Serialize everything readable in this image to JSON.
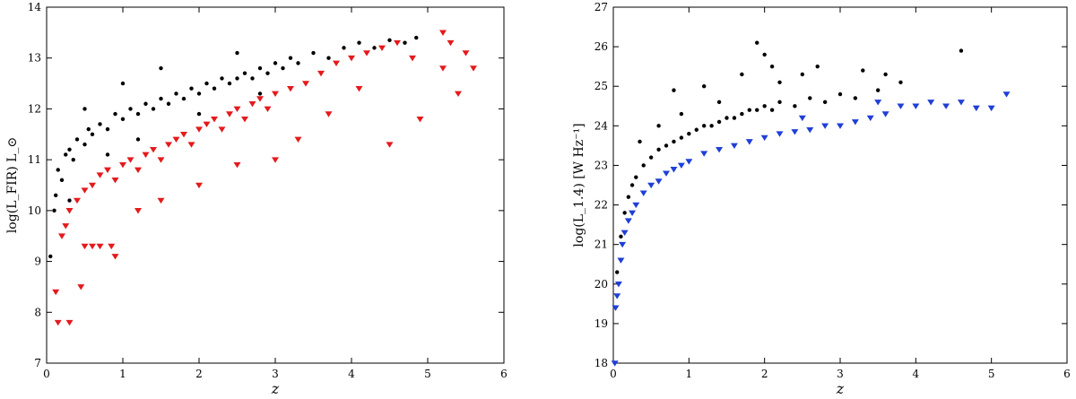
{
  "chart_data": [
    {
      "type": "scatter",
      "xlabel": "z",
      "ylabel": "log(L_FIR) L_⊙",
      "xlim": [
        0,
        6
      ],
      "ylim": [
        7,
        14
      ],
      "xticks": [
        "0",
        "1",
        "2",
        "3",
        "4",
        "5",
        "6"
      ],
      "yticks": [
        "7",
        "8",
        "9",
        "10",
        "11",
        "12",
        "13",
        "14"
      ],
      "grid": false,
      "series": [
        {
          "marker": "circle",
          "color": "#000000",
          "points": [
            [
              0.05,
              9.1
            ],
            [
              0.1,
              10.0
            ],
            [
              0.12,
              10.3
            ],
            [
              0.15,
              10.8
            ],
            [
              0.2,
              10.6
            ],
            [
              0.25,
              11.1
            ],
            [
              0.3,
              11.2
            ],
            [
              0.35,
              11.0
            ],
            [
              0.4,
              11.4
            ],
            [
              0.5,
              11.3
            ],
            [
              0.55,
              11.6
            ],
            [
              0.6,
              11.5
            ],
            [
              0.7,
              11.7
            ],
            [
              0.8,
              11.6
            ],
            [
              0.9,
              11.9
            ],
            [
              1.0,
              11.8
            ],
            [
              1.1,
              12.0
            ],
            [
              1.2,
              11.9
            ],
            [
              1.3,
              12.1
            ],
            [
              1.4,
              12.0
            ],
            [
              1.5,
              12.2
            ],
            [
              1.6,
              12.1
            ],
            [
              1.7,
              12.3
            ],
            [
              1.8,
              12.2
            ],
            [
              1.9,
              12.4
            ],
            [
              2.0,
              12.3
            ],
            [
              2.1,
              12.5
            ],
            [
              2.2,
              12.4
            ],
            [
              2.3,
              12.6
            ],
            [
              2.4,
              12.5
            ],
            [
              2.5,
              12.6
            ],
            [
              2.6,
              12.7
            ],
            [
              2.7,
              12.6
            ],
            [
              2.8,
              12.8
            ],
            [
              2.9,
              12.7
            ],
            [
              3.0,
              12.9
            ],
            [
              3.1,
              12.8
            ],
            [
              3.2,
              13.0
            ],
            [
              3.3,
              12.9
            ],
            [
              3.5,
              13.1
            ],
            [
              3.7,
              13.0
            ],
            [
              3.9,
              13.2
            ],
            [
              4.1,
              13.3
            ],
            [
              4.3,
              13.2
            ],
            [
              4.5,
              13.35
            ],
            [
              4.7,
              13.3
            ],
            [
              4.85,
              13.4
            ],
            [
              1.5,
              12.8
            ],
            [
              1.0,
              12.5
            ],
            [
              0.5,
              12.0
            ],
            [
              2.5,
              13.1
            ],
            [
              0.3,
              10.2
            ],
            [
              0.8,
              11.1
            ],
            [
              1.2,
              11.4
            ],
            [
              2.0,
              11.9
            ],
            [
              2.8,
              12.3
            ]
          ]
        },
        {
          "marker": "triangle-down",
          "color": "#e41a1c",
          "points": [
            [
              0.12,
              8.4
            ],
            [
              0.15,
              7.8
            ],
            [
              0.3,
              7.8
            ],
            [
              0.45,
              8.5
            ],
            [
              0.5,
              9.3
            ],
            [
              0.6,
              9.3
            ],
            [
              0.7,
              9.3
            ],
            [
              0.85,
              9.3
            ],
            [
              0.9,
              9.1
            ],
            [
              0.2,
              9.5
            ],
            [
              0.25,
              9.7
            ],
            [
              0.3,
              10.0
            ],
            [
              0.4,
              10.2
            ],
            [
              0.5,
              10.4
            ],
            [
              0.6,
              10.5
            ],
            [
              0.7,
              10.7
            ],
            [
              0.8,
              10.8
            ],
            [
              0.9,
              10.6
            ],
            [
              1.0,
              10.9
            ],
            [
              1.1,
              11.0
            ],
            [
              1.2,
              10.8
            ],
            [
              1.3,
              11.1
            ],
            [
              1.4,
              11.2
            ],
            [
              1.5,
              11.0
            ],
            [
              1.6,
              11.3
            ],
            [
              1.7,
              11.4
            ],
            [
              1.8,
              11.5
            ],
            [
              1.9,
              11.3
            ],
            [
              2.0,
              11.6
            ],
            [
              2.1,
              11.7
            ],
            [
              2.2,
              11.8
            ],
            [
              2.3,
              11.6
            ],
            [
              2.4,
              11.9
            ],
            [
              2.5,
              12.0
            ],
            [
              2.6,
              11.8
            ],
            [
              2.7,
              12.1
            ],
            [
              2.8,
              12.2
            ],
            [
              2.9,
              12.0
            ],
            [
              3.0,
              12.3
            ],
            [
              3.2,
              12.4
            ],
            [
              3.4,
              12.5
            ],
            [
              3.6,
              12.7
            ],
            [
              3.8,
              12.9
            ],
            [
              4.0,
              13.0
            ],
            [
              4.2,
              13.1
            ],
            [
              4.4,
              13.2
            ],
            [
              4.6,
              13.3
            ],
            [
              4.8,
              13.0
            ],
            [
              5.2,
              13.5
            ],
            [
              5.3,
              13.3
            ],
            [
              5.5,
              13.1
            ],
            [
              5.2,
              12.8
            ],
            [
              5.4,
              12.3
            ],
            [
              5.6,
              12.8
            ],
            [
              4.9,
              11.8
            ],
            [
              4.5,
              11.3
            ],
            [
              1.5,
              10.2
            ],
            [
              1.2,
              10.0
            ],
            [
              2.0,
              10.5
            ],
            [
              2.5,
              10.9
            ],
            [
              3.0,
              11.0
            ],
            [
              3.3,
              11.4
            ],
            [
              3.7,
              11.9
            ],
            [
              4.1,
              12.4
            ]
          ]
        }
      ]
    },
    {
      "type": "scatter",
      "xlabel": "z",
      "ylabel": "log(L_1.4) [W Hz⁻¹]",
      "xlim": [
        0,
        6
      ],
      "ylim": [
        18,
        27
      ],
      "xticks": [
        "0",
        "1",
        "2",
        "3",
        "4",
        "5",
        "6"
      ],
      "yticks": [
        "18",
        "19",
        "20",
        "21",
        "22",
        "23",
        "24",
        "25",
        "26",
        "27"
      ],
      "grid": false,
      "series": [
        {
          "marker": "circle",
          "color": "#000000",
          "points": [
            [
              0.05,
              20.3
            ],
            [
              0.1,
              21.2
            ],
            [
              0.15,
              21.8
            ],
            [
              0.2,
              22.2
            ],
            [
              0.25,
              22.5
            ],
            [
              0.3,
              22.7
            ],
            [
              0.4,
              23.0
            ],
            [
              0.5,
              23.2
            ],
            [
              0.6,
              23.4
            ],
            [
              0.7,
              23.5
            ],
            [
              0.8,
              23.6
            ],
            [
              0.9,
              23.7
            ],
            [
              1.0,
              23.8
            ],
            [
              1.1,
              23.9
            ],
            [
              1.2,
              24.0
            ],
            [
              1.3,
              24.0
            ],
            [
              1.4,
              24.1
            ],
            [
              1.5,
              24.2
            ],
            [
              1.6,
              24.2
            ],
            [
              1.7,
              24.3
            ],
            [
              1.8,
              24.4
            ],
            [
              1.9,
              24.4
            ],
            [
              2.0,
              24.5
            ],
            [
              2.1,
              24.4
            ],
            [
              2.2,
              24.6
            ],
            [
              2.4,
              24.5
            ],
            [
              2.6,
              24.7
            ],
            [
              2.8,
              24.6
            ],
            [
              3.0,
              24.8
            ],
            [
              3.2,
              24.7
            ],
            [
              3.5,
              24.9
            ],
            [
              3.8,
              25.1
            ],
            [
              1.9,
              26.1
            ],
            [
              2.0,
              25.8
            ],
            [
              2.1,
              25.5
            ],
            [
              1.7,
              25.3
            ],
            [
              1.2,
              25.0
            ],
            [
              0.8,
              24.9
            ],
            [
              2.5,
              25.3
            ],
            [
              3.3,
              25.4
            ],
            [
              4.6,
              25.9
            ],
            [
              0.9,
              24.3
            ],
            [
              1.4,
              24.6
            ],
            [
              0.35,
              23.6
            ],
            [
              0.6,
              24.0
            ],
            [
              2.7,
              25.5
            ],
            [
              2.2,
              25.1
            ],
            [
              3.6,
              25.3
            ]
          ]
        },
        {
          "marker": "triangle-down",
          "color": "#1f3fd6",
          "points": [
            [
              0.02,
              18.0
            ],
            [
              0.03,
              19.4
            ],
            [
              0.05,
              19.7
            ],
            [
              0.07,
              20.0
            ],
            [
              0.1,
              20.6
            ],
            [
              0.12,
              21.0
            ],
            [
              0.15,
              21.3
            ],
            [
              0.2,
              21.6
            ],
            [
              0.25,
              21.8
            ],
            [
              0.3,
              22.0
            ],
            [
              0.4,
              22.3
            ],
            [
              0.5,
              22.5
            ],
            [
              0.6,
              22.6
            ],
            [
              0.7,
              22.8
            ],
            [
              0.8,
              22.9
            ],
            [
              0.9,
              23.0
            ],
            [
              1.0,
              23.1
            ],
            [
              1.2,
              23.3
            ],
            [
              1.4,
              23.4
            ],
            [
              1.6,
              23.5
            ],
            [
              1.8,
              23.6
            ],
            [
              2.0,
              23.7
            ],
            [
              2.2,
              23.8
            ],
            [
              2.4,
              23.85
            ],
            [
              2.6,
              23.9
            ],
            [
              2.8,
              24.0
            ],
            [
              3.0,
              24.0
            ],
            [
              3.2,
              24.1
            ],
            [
              3.4,
              24.2
            ],
            [
              3.6,
              24.3
            ],
            [
              3.8,
              24.5
            ],
            [
              4.0,
              24.5
            ],
            [
              4.2,
              24.6
            ],
            [
              4.4,
              24.5
            ],
            [
              4.6,
              24.6
            ],
            [
              4.8,
              24.45
            ],
            [
              5.0,
              24.45
            ],
            [
              5.2,
              24.8
            ],
            [
              2.5,
              24.2
            ],
            [
              3.5,
              24.6
            ]
          ]
        }
      ]
    }
  ]
}
